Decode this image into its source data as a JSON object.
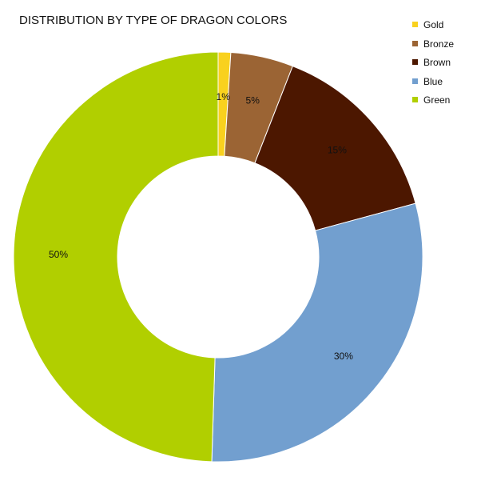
{
  "chart_data": {
    "type": "pie",
    "title": "DISTRIBUTION BY TYPE OF DRAGON COLORS",
    "categories": [
      "Gold",
      "Bronze",
      "Brown",
      "Blue",
      "Green"
    ],
    "values": [
      1,
      5,
      15,
      30,
      50
    ],
    "labels": [
      "1%",
      "5%",
      "15%",
      "30%",
      "50%"
    ],
    "colors": [
      "#f9d11e",
      "#9b6434",
      "#4c1700",
      "#729fcf",
      "#b1cf00"
    ],
    "donut": true,
    "legend_position": "top-right"
  }
}
